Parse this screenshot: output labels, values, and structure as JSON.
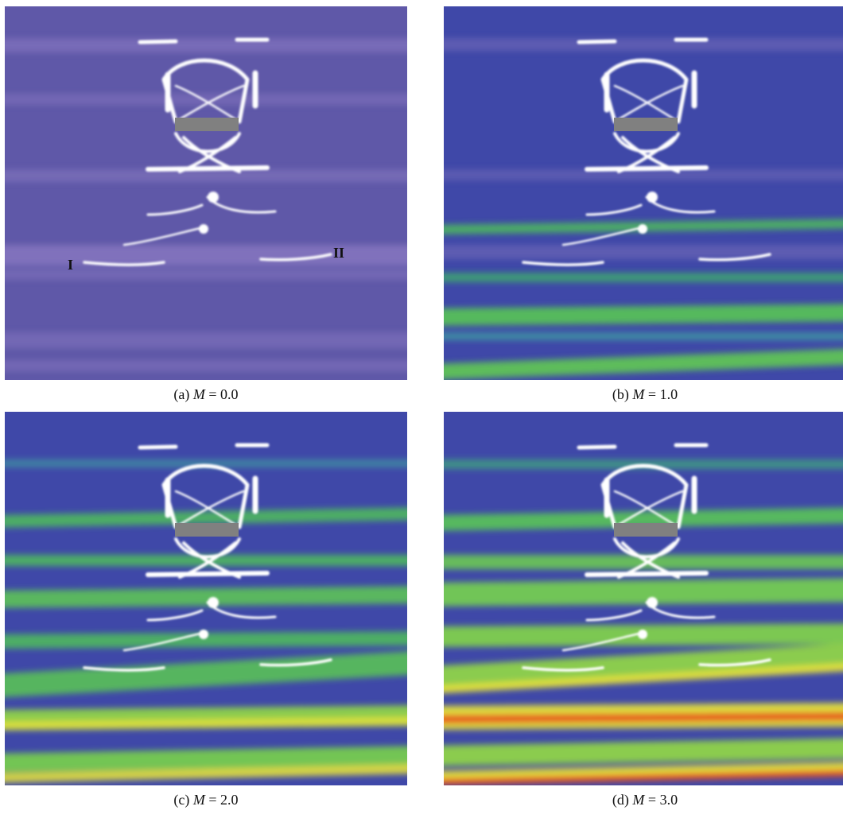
{
  "panels": [
    {
      "id": "a",
      "prefix": "(a)",
      "var": "M",
      "eq": "= 0.0",
      "intensity": 0.0
    },
    {
      "id": "b",
      "prefix": "(b)",
      "var": "M",
      "eq": "= 1.0",
      "intensity": 1.0
    },
    {
      "id": "c",
      "prefix": "(c)",
      "var": "M",
      "eq": "= 2.0",
      "intensity": 2.0
    },
    {
      "id": "d",
      "prefix": "(d)",
      "var": "M",
      "eq": "= 3.0",
      "intensity": 3.0
    }
  ],
  "crack_labels": {
    "first": "I",
    "second": "II"
  },
  "colors": {
    "background_purple": "#5f58a8",
    "background_blue": "#3f48a8",
    "band_green": "#4fbf5a",
    "band_yellow": "#e6e23a",
    "band_red": "#e8401e",
    "bar_gray": "#808080",
    "crack_white": "#ffffff"
  }
}
